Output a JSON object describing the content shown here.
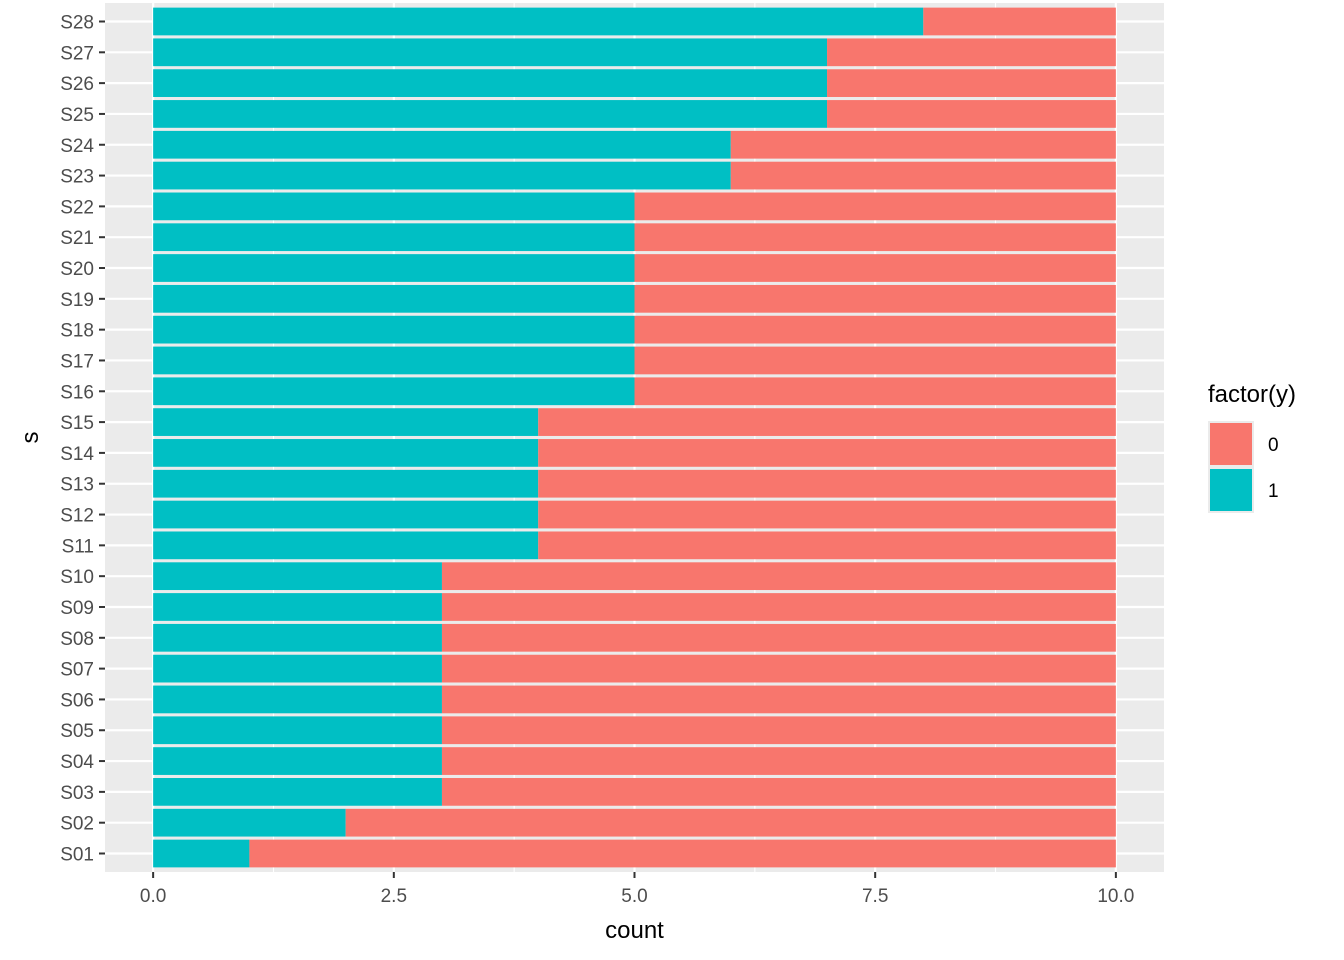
{
  "chart_data": {
    "type": "bar",
    "orientation": "horizontal",
    "stacked": true,
    "categories": [
      "S01",
      "S02",
      "S03",
      "S04",
      "S05",
      "S06",
      "S07",
      "S08",
      "S09",
      "S10",
      "S11",
      "S12",
      "S13",
      "S14",
      "S15",
      "S16",
      "S17",
      "S18",
      "S19",
      "S20",
      "S21",
      "S22",
      "S23",
      "S24",
      "S25",
      "S26",
      "S27",
      "S28"
    ],
    "series": [
      {
        "name": "1",
        "color": "#00BFC4",
        "values": [
          1,
          2,
          3,
          3,
          3,
          3,
          3,
          3,
          3,
          3,
          4,
          4,
          4,
          4,
          4,
          5,
          5,
          5,
          5,
          5,
          5,
          5,
          6,
          6,
          7,
          7,
          7,
          8
        ]
      },
      {
        "name": "0",
        "color": "#F8766D",
        "values": [
          9,
          8,
          7,
          7,
          7,
          7,
          7,
          7,
          7,
          7,
          6,
          6,
          6,
          6,
          6,
          5,
          5,
          5,
          5,
          5,
          5,
          5,
          4,
          4,
          3,
          3,
          3,
          2
        ]
      }
    ],
    "xlabel": "count",
    "ylabel": "s",
    "xlim": [
      -0.5,
      10.5
    ],
    "xticks": [
      0,
      2.5,
      5,
      7.5,
      10
    ],
    "xtick_labels": [
      "0.0",
      "2.5",
      "5.0",
      "7.5",
      "10.0"
    ],
    "grid": true,
    "background": "#EBEBEB",
    "legend": {
      "title": "factor(y)",
      "position": "right",
      "entries": [
        {
          "label": "0",
          "color": "#F8766D"
        },
        {
          "label": "1",
          "color": "#00BFC4"
        }
      ]
    }
  }
}
